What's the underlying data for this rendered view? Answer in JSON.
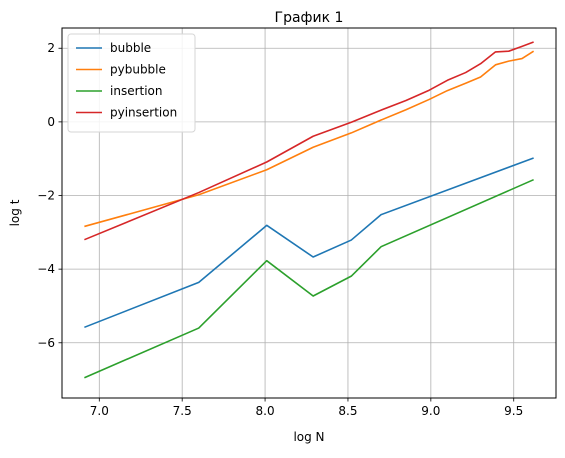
{
  "chart_data": {
    "type": "line",
    "title": "График 1",
    "xlabel": "log N",
    "ylabel": "log t",
    "xlim": [
      6.775,
      9.755
    ],
    "ylim": [
      -7.5,
      2.55
    ],
    "xticks": [
      7.0,
      7.5,
      8.0,
      8.5,
      9.0,
      9.5
    ],
    "xtick_labels": [
      "7.0",
      "7.5",
      "8.0",
      "8.5",
      "9.0",
      "9.5"
    ],
    "yticks": [
      -6,
      -4,
      -2,
      0,
      2
    ],
    "ytick_labels": [
      "−6",
      "−4",
      "−2",
      "0",
      "2"
    ],
    "grid": true,
    "legend_position": "top-left",
    "series": [
      {
        "name": "bubble",
        "color": "#1f77b4",
        "x": [
          6.91,
          7.6,
          8.01,
          8.29,
          8.52,
          8.7,
          9.62
        ],
        "y": [
          -5.58,
          -4.36,
          -2.81,
          -3.67,
          -3.21,
          -2.52,
          -0.98
        ]
      },
      {
        "name": "pybubble",
        "color": "#ff7f0e",
        "x": [
          6.91,
          7.6,
          8.01,
          8.29,
          8.52,
          8.7,
          8.85,
          8.99,
          9.1,
          9.21,
          9.3,
          9.39,
          9.47,
          9.55,
          9.62
        ],
        "y": [
          -2.84,
          -1.98,
          -1.3,
          -0.69,
          -0.3,
          0.05,
          0.33,
          0.61,
          0.85,
          1.05,
          1.22,
          1.55,
          1.65,
          1.72,
          1.92
        ]
      },
      {
        "name": "insertion",
        "color": "#2ca02c",
        "x": [
          6.91,
          7.6,
          8.01,
          8.29,
          8.52,
          8.7,
          9.62
        ],
        "y": [
          -6.95,
          -5.6,
          -3.77,
          -4.73,
          -4.19,
          -3.39,
          -1.57
        ]
      },
      {
        "name": "pyinsertion",
        "color": "#d62728",
        "x": [
          6.91,
          7.6,
          8.01,
          8.29,
          8.52,
          8.7,
          8.85,
          8.99,
          9.1,
          9.21,
          9.3,
          9.39,
          9.47,
          9.55,
          9.62
        ],
        "y": [
          -3.2,
          -1.92,
          -1.09,
          -0.39,
          -0.01,
          0.32,
          0.58,
          0.86,
          1.13,
          1.34,
          1.58,
          1.9,
          1.92,
          2.05,
          2.17
        ]
      }
    ]
  }
}
